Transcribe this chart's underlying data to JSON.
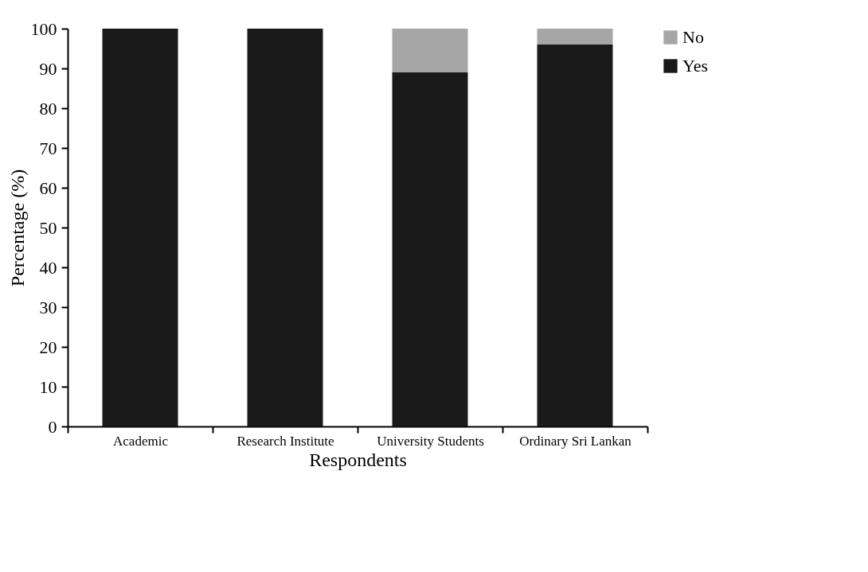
{
  "chart_data": {
    "type": "bar",
    "stacked": true,
    "categories": [
      "Academic",
      "Research Institute",
      "University Students",
      "Ordinary Sri Lankan"
    ],
    "series": [
      {
        "name": "Yes",
        "color": "#1a1a1a",
        "values": [
          100,
          100,
          89,
          96
        ]
      },
      {
        "name": "No",
        "color": "#a6a6a6",
        "values": [
          0,
          0,
          11,
          4
        ]
      }
    ],
    "xlabel": "Respondents",
    "ylabel": "Percentage (%)",
    "ylim": [
      0,
      100
    ],
    "yticks": [
      0,
      10,
      20,
      30,
      40,
      50,
      60,
      70,
      80,
      90,
      100
    ],
    "grid": false,
    "legend": "right"
  }
}
